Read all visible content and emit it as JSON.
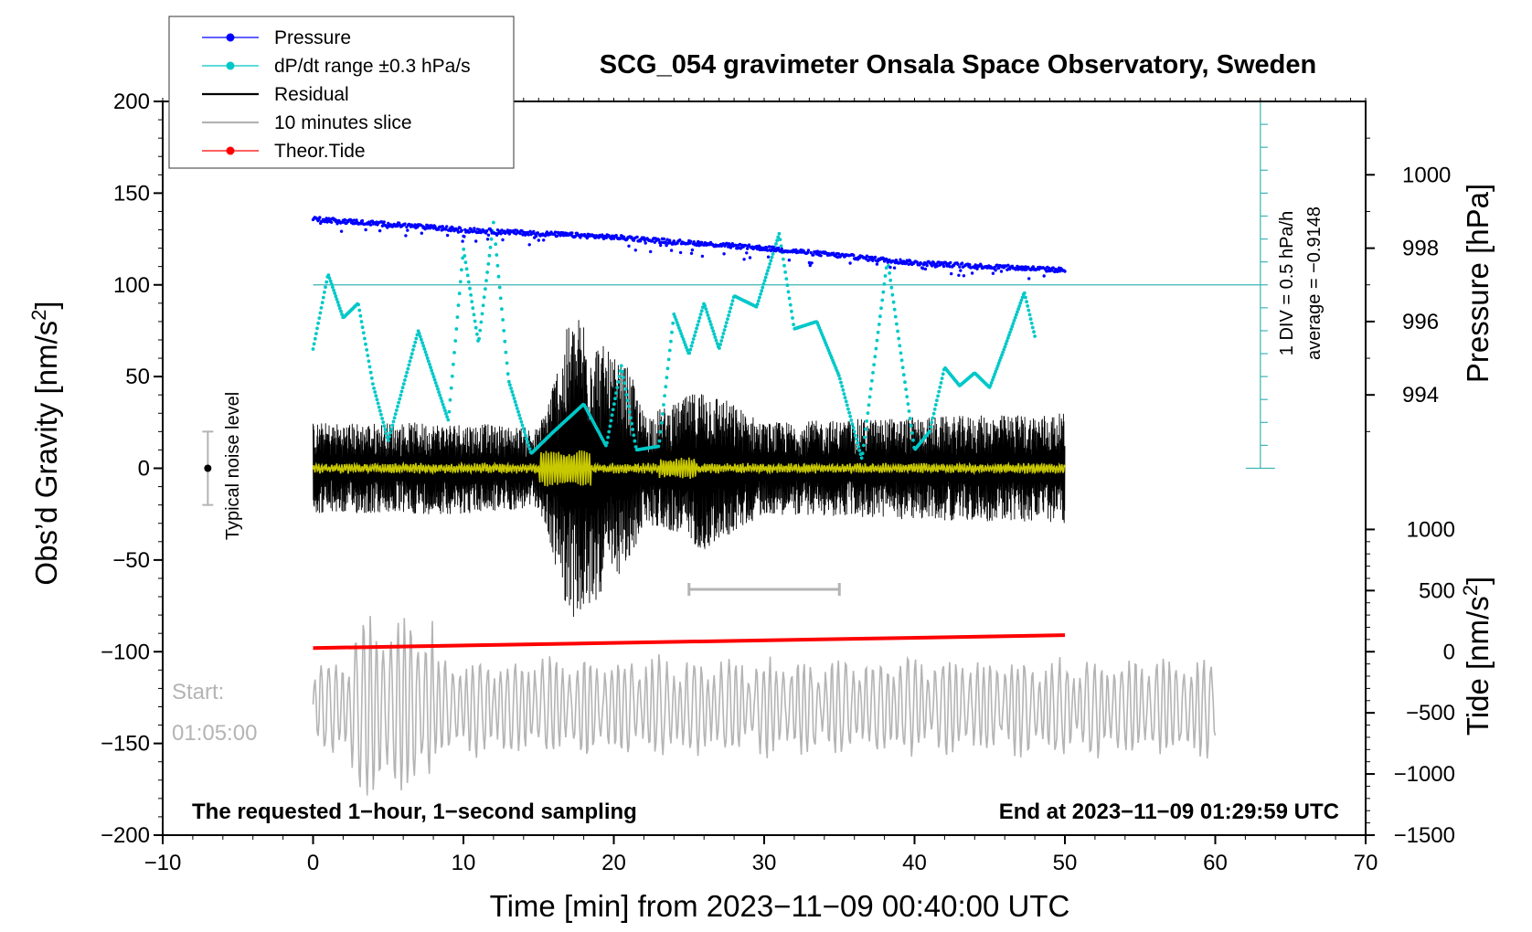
{
  "chart_data": {
    "type": "line",
    "title": "SCG_054 gravimeter Onsala Space Observatory, Sweden",
    "xlabel": "Time [min] from 2023−11−09 00:40:00 UTC",
    "ylabel": "Obs’d Gravity [nm/s2]",
    "ylabel_main": "Obs’d Gravity [nm/s",
    "ylabel_sup": "2",
    "ylabel_end": "]",
    "y2label": "Pressure [hPa]",
    "y3label": "Tide [nm/s2]",
    "y3label_main": "Tide [nm/s",
    "y3label_sup": "2",
    "y3label_end": "]",
    "xlim": [
      -10,
      70
    ],
    "ylim": [
      -200,
      200
    ],
    "x_ticks": [
      {
        "v": -10,
        "t": "−10"
      },
      {
        "v": 0,
        "t": "0"
      },
      {
        "v": 10,
        "t": "10"
      },
      {
        "v": 20,
        "t": "20"
      },
      {
        "v": 30,
        "t": "30"
      },
      {
        "v": 40,
        "t": "40"
      },
      {
        "v": 50,
        "t": "50"
      },
      {
        "v": 60,
        "t": "60"
      },
      {
        "v": 70,
        "t": "70"
      }
    ],
    "y_ticks": [
      {
        "v": 200,
        "t": "200"
      },
      {
        "v": 150,
        "t": "150"
      },
      {
        "v": 100,
        "t": "100"
      },
      {
        "v": 50,
        "t": "50"
      },
      {
        "v": 0,
        "t": "0"
      },
      {
        "v": -50,
        "t": "−50"
      },
      {
        "v": -100,
        "t": "−100"
      },
      {
        "v": -150,
        "t": "−150"
      },
      {
        "v": -200,
        "t": "−200"
      }
    ],
    "pressure_axis": {
      "ticks": [
        {
          "v": 1000,
          "t": "1000"
        },
        {
          "v": 998,
          "t": "998"
        },
        {
          "v": 996,
          "t": "996"
        },
        {
          "v": 994,
          "t": "994"
        }
      ],
      "map_gravity_at_1000": 160,
      "gravity_per_hpa": 20
    },
    "tide_axis": {
      "ticks": [
        {
          "v": 1000,
          "t": "1000"
        },
        {
          "v": 500,
          "t": "500"
        },
        {
          "v": 0,
          "t": "0"
        },
        {
          "v": -500,
          "t": "−500"
        },
        {
          "v": -1000,
          "t": "−1000"
        },
        {
          "v": -1500,
          "t": "−1500"
        }
      ],
      "gravity_at_0": -100,
      "gravity_per_500": 33.33
    },
    "legend": [
      {
        "label": "Pressure",
        "color": "#0000ff",
        "marker": true
      },
      {
        "label": "dP/dt range ±0.3 hPa/s",
        "color": "#00c8c8",
        "marker": true
      },
      {
        "label": "Residual",
        "color": "#000000",
        "marker": false
      },
      {
        "label": "10 minutes slice",
        "color": "#b4b4b4",
        "marker": false
      },
      {
        "label": "Theor.Tide",
        "color": "#ff0000",
        "marker": true
      }
    ],
    "series": [
      {
        "name": "Pressure",
        "color": "#0000ff",
        "unit": "hPa",
        "x": [
          0,
          10,
          20,
          30,
          40,
          50
        ],
        "values": [
          998.8,
          998.5,
          998.3,
          998.0,
          997.6,
          997.4
        ]
      },
      {
        "name": "dP/dt range ±0.3 hPa/s",
        "color": "#00c8c8",
        "unit": "nm/s2 (display)",
        "x": [
          0,
          1,
          2,
          3,
          4,
          5,
          7,
          9,
          10,
          11,
          12,
          13,
          14.5,
          16,
          18,
          19.5,
          20.5,
          21.5,
          23,
          24,
          25,
          26,
          27,
          28,
          29.5,
          31,
          32,
          33.5,
          35,
          36.5,
          38.2,
          40,
          41,
          42,
          43,
          44,
          45,
          46,
          47.3,
          48
        ],
        "values": [
          65,
          106,
          82,
          90,
          45,
          15,
          75,
          26,
          120,
          68,
          134,
          48,
          8,
          20,
          35,
          12,
          56,
          10,
          12,
          84,
          62,
          90,
          65,
          94,
          88,
          128,
          76,
          80,
          50,
          5,
          114,
          10,
          20,
          55,
          45,
          52,
          44,
          66,
          96,
          72
        ]
      },
      {
        "name": "Residual",
        "color": "#000000",
        "unit": "nm/s2",
        "x": [
          0,
          10,
          15,
          16,
          17,
          18,
          19,
          20,
          21,
          22,
          24,
          26,
          30,
          40,
          50
        ],
        "values_envelope": [
          25,
          25,
          22,
          50,
          80,
          85,
          70,
          60,
          55,
          30,
          35,
          45,
          25,
          28,
          30
        ]
      },
      {
        "name": "10 minutes slice",
        "color": "#b4b4b4",
        "unit": "nm/s2",
        "x": [
          0,
          60
        ],
        "mean": -130,
        "amplitude": 25
      },
      {
        "name": "Theor.Tide",
        "color": "#ff0000",
        "unit": "nm/s2",
        "x": [
          0,
          50
        ],
        "values": [
          -98,
          -91
        ]
      }
    ],
    "pressure_reference": {
      "value": 100,
      "x": [
        0,
        63
      ]
    },
    "scale_bar": {
      "x": 63,
      "ymin": 0,
      "ymax": 200
    },
    "slice_marker": {
      "x": [
        25,
        35
      ],
      "y": -66
    },
    "noise_bar": {
      "x": -7,
      "ymin": -20,
      "ymax": 20
    }
  },
  "annotations": {
    "div_label": "1 DIV = 0.5 hPa/h",
    "average_label": "average = −0.9148",
    "noise_label": "Typical noise level",
    "start_label": "Start:",
    "start_time": "01:05:00",
    "sampling_note": "The requested 1−hour, 1−second sampling",
    "end_note": "End at 2023−11−09 01:29:59 UTC"
  }
}
